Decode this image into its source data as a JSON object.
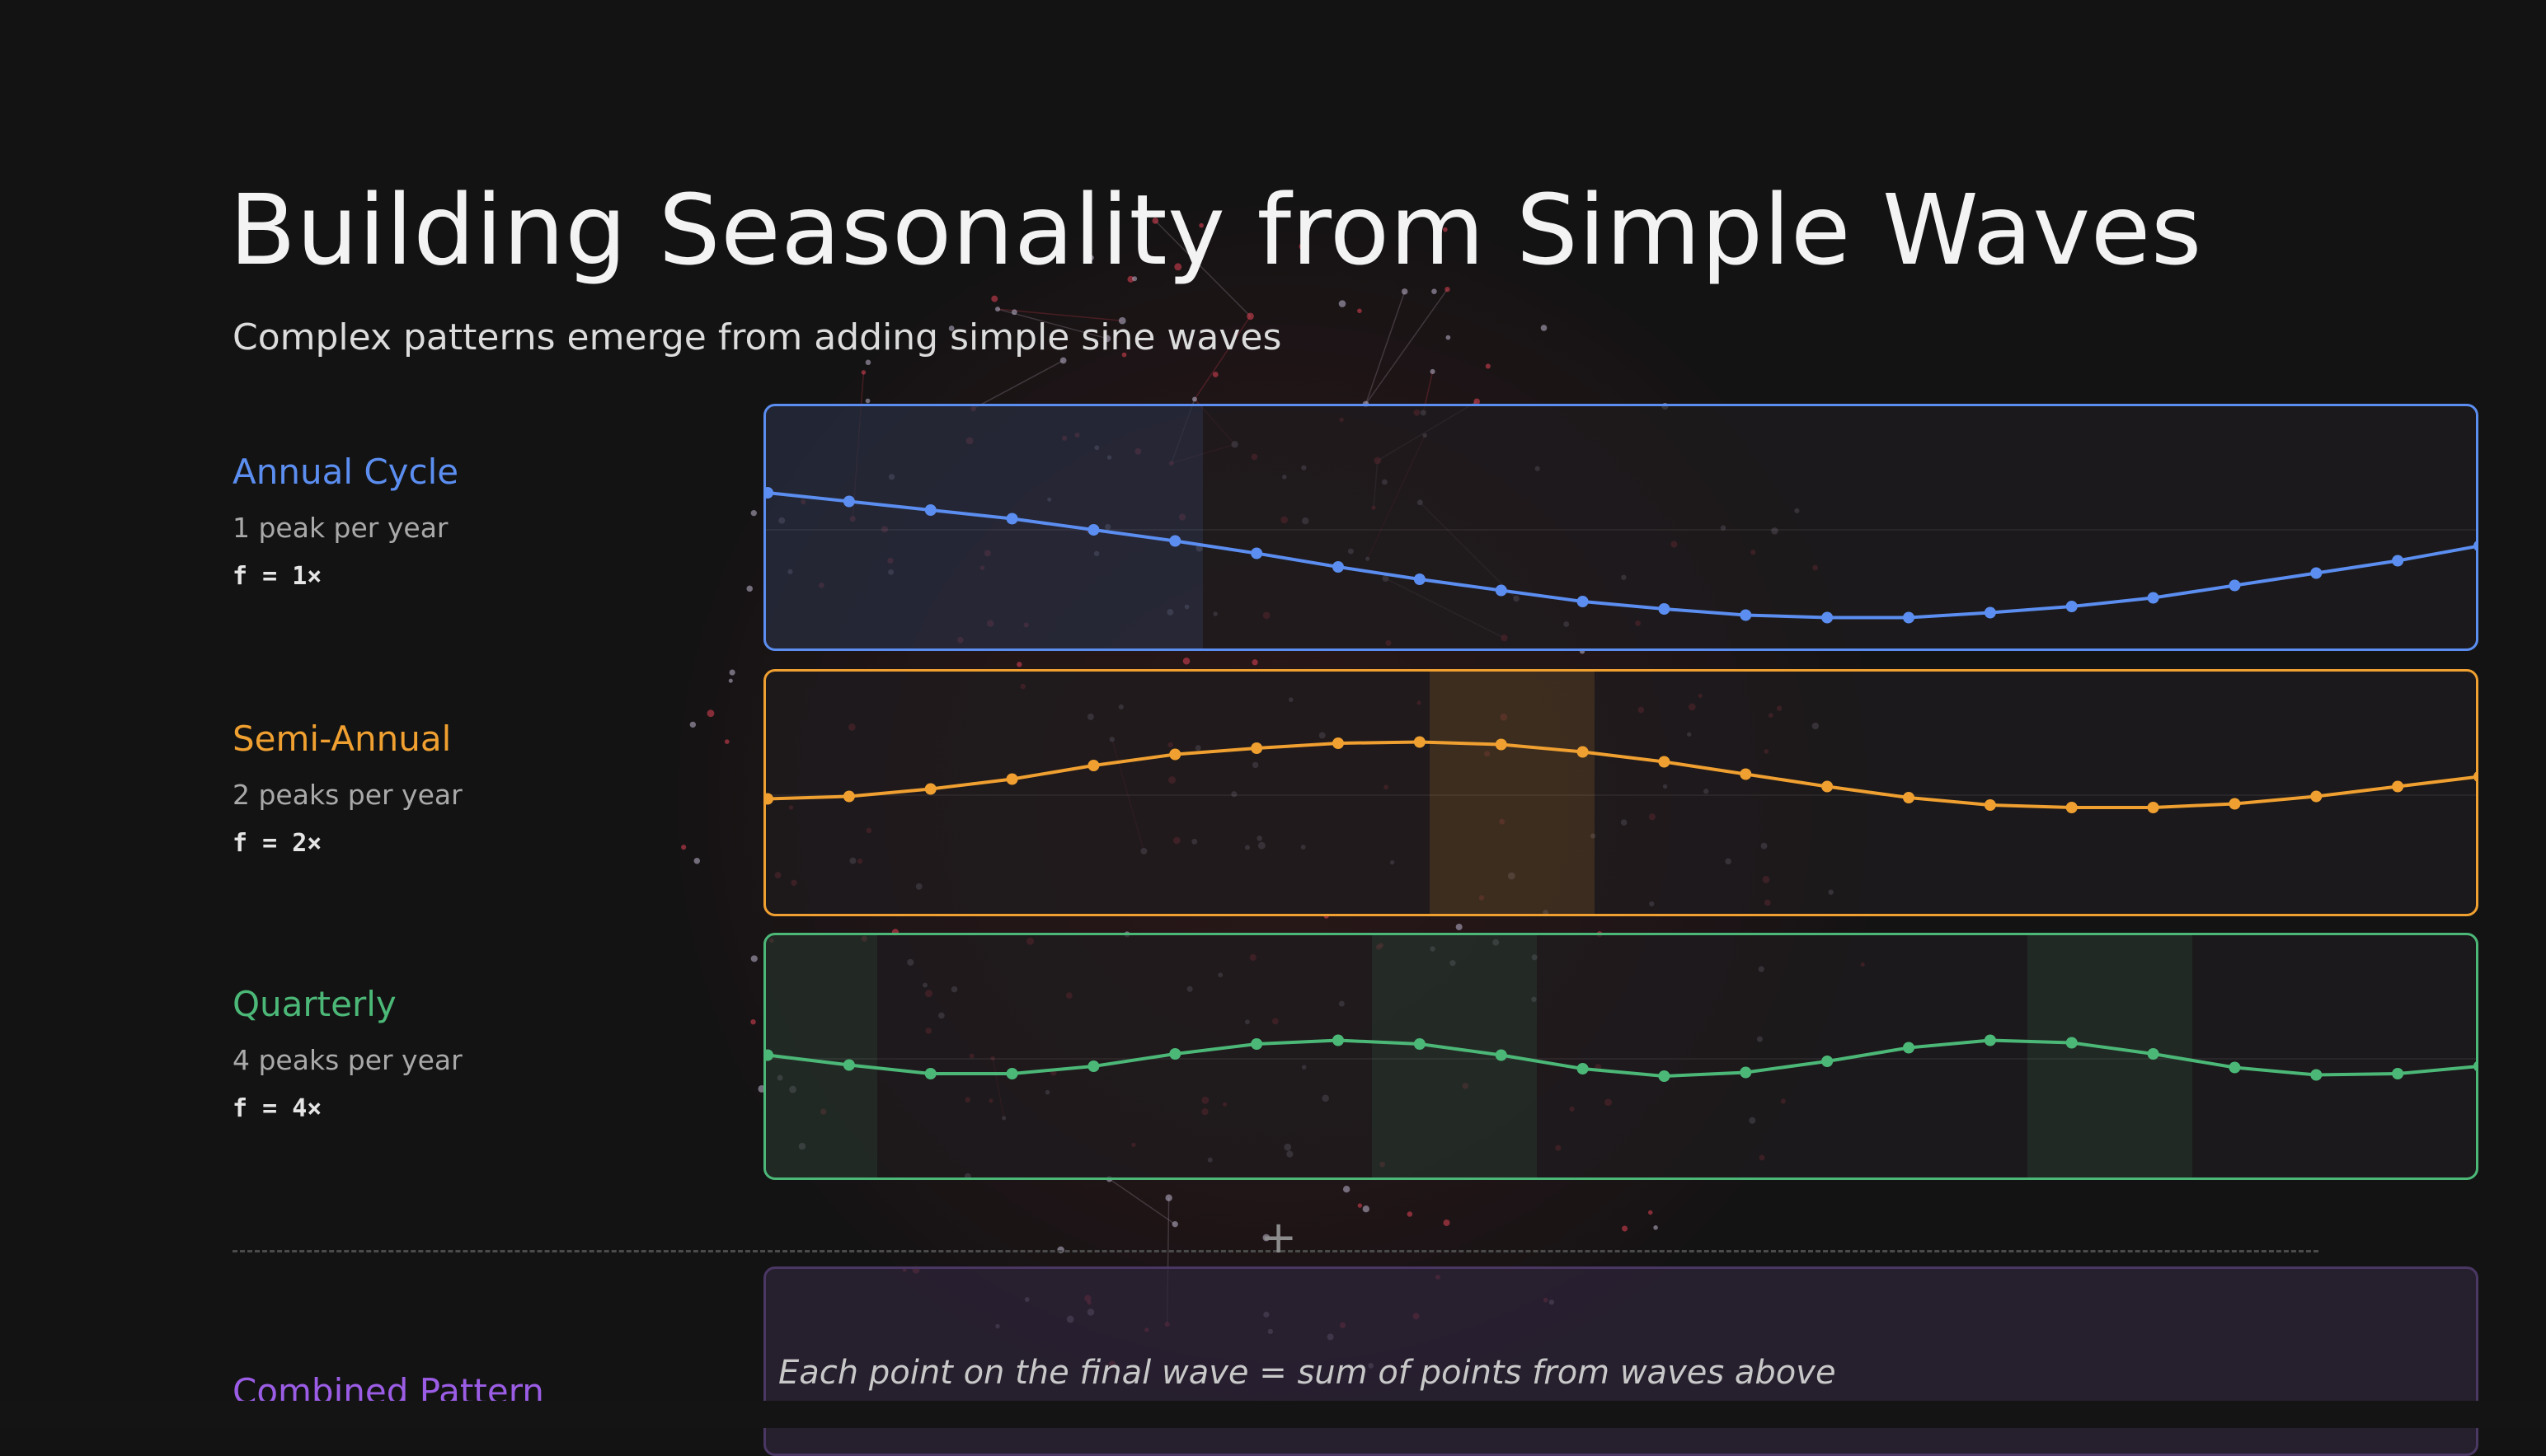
{
  "header": {
    "title": "Building Seasonality from Simple Waves",
    "subtitle": "Complex patterns emerge from adding simple sine waves"
  },
  "waves": [
    {
      "name": "Annual Cycle",
      "desc": "1 peak per year",
      "freq": "f = 1×",
      "color": "#5b8ef0"
    },
    {
      "name": "Semi-Annual",
      "desc": "2 peaks per year",
      "freq": "f = 2×",
      "color": "#f0a030"
    },
    {
      "name": "Quarterly",
      "desc": "4 peaks per year",
      "freq": "f = 4×",
      "color": "#4cb878"
    }
  ],
  "combined": {
    "name": "Combined Pattern",
    "note": "Each point on the final wave = sum of points from waves above",
    "plus_symbol": "+",
    "color": "#9b5de5"
  },
  "chart_data": [
    {
      "type": "line",
      "name": "Annual Cycle",
      "x": [
        0,
        1,
        2,
        3,
        4,
        5,
        6,
        7,
        8,
        9,
        10,
        11,
        12,
        13,
        14,
        15,
        16,
        17,
        18,
        19,
        20,
        21
      ],
      "y": [
        0.3,
        0.23,
        0.16,
        0.09,
        0.0,
        -0.09,
        -0.19,
        -0.3,
        -0.4,
        -0.49,
        -0.58,
        -0.64,
        -0.69,
        -0.71,
        -0.71,
        -0.67,
        -0.62,
        -0.55,
        -0.45,
        -0.35,
        -0.25,
        -0.13
      ],
      "grid": false
    },
    {
      "type": "line",
      "name": "Semi-Annual",
      "x": [
        0,
        1,
        2,
        3,
        4,
        5,
        6,
        7,
        8,
        9,
        10,
        11,
        12,
        13,
        14,
        15,
        16,
        17,
        18,
        19,
        20,
        21
      ],
      "y": [
        -0.03,
        -0.01,
        0.05,
        0.13,
        0.24,
        0.33,
        0.38,
        0.42,
        0.43,
        0.41,
        0.35,
        0.27,
        0.17,
        0.07,
        -0.02,
        -0.08,
        -0.1,
        -0.1,
        -0.07,
        -0.01,
        0.07,
        0.15
      ],
      "grid": false
    },
    {
      "type": "line",
      "name": "Quarterly",
      "x": [
        0,
        1,
        2,
        3,
        4,
        5,
        6,
        7,
        8,
        9,
        10,
        11,
        12,
        13,
        14,
        15,
        16,
        17,
        18,
        19,
        20,
        21
      ],
      "y": [
        0.03,
        -0.05,
        -0.12,
        -0.12,
        -0.06,
        0.04,
        0.12,
        0.15,
        0.12,
        0.03,
        -0.08,
        -0.14,
        -0.11,
        -0.02,
        0.09,
        0.15,
        0.13,
        0.04,
        -0.07,
        -0.13,
        -0.12,
        -0.06
      ],
      "grid": false
    }
  ]
}
